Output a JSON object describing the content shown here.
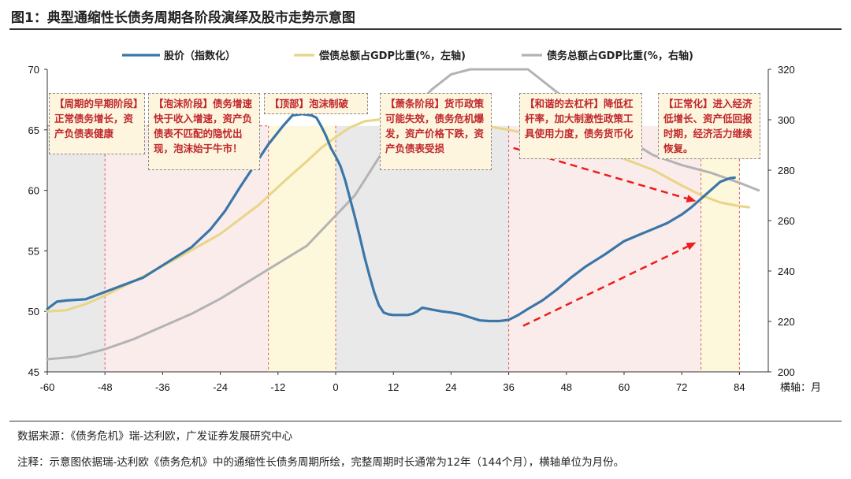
{
  "figure": {
    "title": "图1：典型通缩性长债务周期各阶段演绎及股市走势示意图",
    "source": "数据来源：《债务危机》瑞-达利欧，广发证券发展研究中心",
    "note": "注释：示意图依据瑞-达利欧《债务危机》中的通缩性长债务周期所绘，完整周期时长通常为12年（144个月），横轴单位为月份。"
  },
  "colors": {
    "stock": "#3a76a8",
    "debt_service": "#e8d587",
    "total_debt": "#b3b3b3",
    "arrow": "#ee1c1c",
    "shade_gray": "#e9e9e9",
    "shade_pink": "#fbecec",
    "shade_yellow": "#fdf7dc",
    "phase_line": "#e0585b"
  },
  "chart_data": {
    "type": "line",
    "xlabel": "横轴：月",
    "x_ticks": [
      -60,
      -48,
      -36,
      -24,
      -12,
      0,
      12,
      24,
      36,
      48,
      60,
      72,
      84
    ],
    "xlim": [
      -60,
      90
    ],
    "y_left": {
      "ylim": [
        45,
        70
      ],
      "ticks": [
        45,
        50,
        55,
        60,
        65,
        70
      ]
    },
    "y_right": {
      "ylim": [
        200,
        320
      ],
      "ticks": [
        200,
        220,
        240,
        260,
        280,
        300,
        320
      ]
    },
    "legend": [
      "股价（指数化）",
      "偿债总额占GDP比重(%，左轴)",
      "债务总额占GDP比重(%，右轴)"
    ],
    "series": [
      {
        "name": "股价（指数化）",
        "axis": "left",
        "x": [
          -60,
          -58,
          -56,
          -52,
          -48,
          -44,
          -40,
          -36,
          -30,
          -26,
          -23,
          -20,
          -17,
          -14,
          -11,
          -9,
          -7,
          -5,
          -4,
          -3,
          -2,
          -1,
          0,
          1,
          2,
          3,
          4,
          5,
          6,
          7,
          8,
          9,
          10,
          11,
          12,
          13,
          14,
          15,
          16,
          17,
          18,
          20,
          22,
          24,
          26,
          28,
          30,
          32,
          34,
          36,
          38,
          40,
          43,
          46,
          49,
          52,
          56,
          60,
          63,
          66,
          69,
          72,
          74,
          76,
          78,
          80,
          82,
          83
        ],
        "values": [
          50.2,
          50.8,
          50.9,
          51.0,
          51.6,
          52.2,
          52.8,
          53.8,
          55.3,
          56.8,
          58.3,
          60.2,
          62.0,
          63.8,
          65.3,
          66.2,
          66.3,
          66.2,
          66.0,
          65.3,
          64.5,
          63.5,
          62.8,
          62.0,
          60.8,
          59.3,
          57.8,
          56.2,
          54.5,
          53.0,
          51.6,
          50.5,
          49.9,
          49.75,
          49.7,
          49.7,
          49.7,
          49.7,
          49.8,
          50.0,
          50.3,
          50.15,
          50.0,
          49.9,
          49.75,
          49.5,
          49.25,
          49.2,
          49.2,
          49.3,
          49.7,
          50.2,
          50.9,
          51.8,
          52.8,
          53.7,
          54.7,
          55.8,
          56.3,
          56.8,
          57.3,
          58.0,
          58.6,
          59.3,
          60.0,
          60.7,
          61.0,
          61.05
        ]
      },
      {
        "name": "偿债总额占GDP比重(%，左轴)",
        "axis": "left",
        "x": [
          -60,
          -56,
          -52,
          -48,
          -40,
          -32,
          -24,
          -16,
          -10,
          -6,
          -3,
          0,
          3,
          6,
          10,
          14,
          18,
          24,
          30,
          36,
          42,
          48,
          54,
          60,
          66,
          72,
          76,
          80,
          84,
          86
        ],
        "values": [
          50.0,
          50.1,
          50.6,
          51.3,
          52.9,
          54.6,
          56.4,
          58.8,
          61.0,
          62.4,
          63.5,
          64.4,
          65.2,
          65.7,
          65.9,
          66.0,
          65.9,
          65.7,
          65.4,
          65.0,
          64.5,
          64.0,
          63.3,
          62.6,
          61.7,
          60.4,
          59.6,
          59.0,
          58.7,
          58.6
        ]
      },
      {
        "name": "债务总额占GDP比重(%，右轴)",
        "axis": "right",
        "x": [
          -60,
          -54,
          -48,
          -42,
          -36,
          -30,
          -24,
          -18,
          -12,
          -6,
          -2,
          0,
          4,
          8,
          12,
          16,
          20,
          24,
          28,
          32,
          34,
          36,
          38,
          40,
          42,
          44,
          48,
          52,
          56,
          60,
          66,
          72,
          78,
          84,
          88
        ],
        "values": [
          205,
          206,
          209,
          213,
          218,
          223,
          229,
          236,
          243,
          250,
          258,
          262,
          270,
          282,
          294,
          304,
          312,
          318,
          322,
          324,
          324,
          323,
          322,
          320,
          317,
          314,
          308,
          303,
          298,
          293,
          286,
          282,
          279,
          275,
          272
        ]
      }
    ],
    "phase_lines_x": [
      -48,
      -14,
      0,
      36,
      76,
      84
    ],
    "shading": [
      {
        "from": -60,
        "to": -48,
        "kind": "gray"
      },
      {
        "from": -48,
        "to": -14,
        "kind": "pink"
      },
      {
        "from": -14,
        "to": 0,
        "kind": "yellow"
      },
      {
        "from": 0,
        "to": 36,
        "kind": "gray"
      },
      {
        "from": 36,
        "to": 76,
        "kind": "pink"
      },
      {
        "from": 76,
        "to": 84,
        "kind": "yellow"
      }
    ],
    "arrows": [
      {
        "from_x": 37,
        "from_y": 63.5,
        "to_x": 75,
        "to_y": 59.1
      },
      {
        "from_x": 39,
        "from_y": 48.8,
        "to_x": 75,
        "to_y": 55.7
      }
    ],
    "annotations": [
      {
        "text": "【周期的早期阶段】正常债务增长，资产负债表健康"
      },
      {
        "text": "【泡沫阶段】债务增速快于收入增速，资产负债表不匹配的隐忧出现，泡沫始于牛市！"
      },
      {
        "text": "【顶部】泡沫制破"
      },
      {
        "text": "【萧条阶段】货币政策可能失效，债务危机爆发，资产价格下跌，资产负债表受损"
      },
      {
        "text": "【和谐的去杠杆】降低杠杆率，加大制激性政策工具使用力度，债务货币化"
      },
      {
        "text": "【正常化】进入经济低增长、资产低回报时期，经济活力继续恢复。"
      }
    ]
  }
}
